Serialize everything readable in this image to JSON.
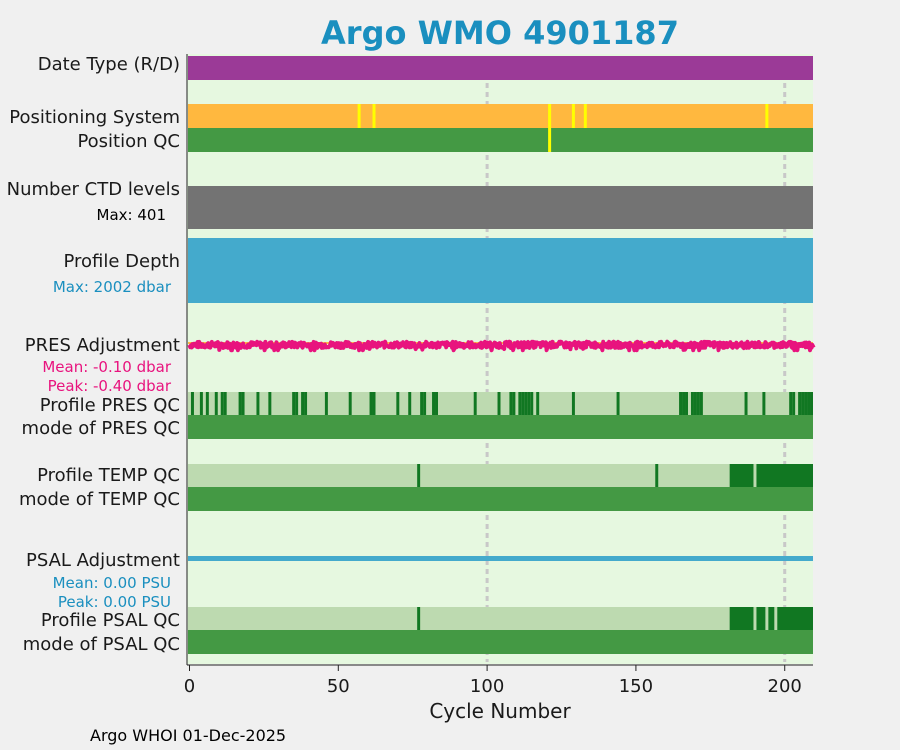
{
  "title": "Argo WMO 4901187",
  "footer": "Argo WHOI 01-Dec-2025",
  "colors": {
    "title": "#1a8fbf",
    "plot_bg": "#e6f8e0",
    "date_type": "#9b3a97",
    "positioning": "#ffb83f",
    "positioning_flag": "#ffff00",
    "position_qc": "#449944",
    "ctd_levels": "#737373",
    "profile_depth": "#44aacc",
    "pres_adj": "#e8137e",
    "pres_zero": "#ffb83f",
    "qc_light": "#bddab0",
    "qc_mid": "#449944",
    "qc_dark": "#117722",
    "psal_adj": "#44aacc",
    "grid": "#c8c8c8",
    "pink_text": "#e8137e",
    "blue_text": "#1a8fbf"
  },
  "labels": {
    "date_type": "Date Type (R/D)",
    "positioning_system": "Positioning System",
    "position_qc": "Position QC",
    "ctd_levels": "Number CTD levels",
    "ctd_max": "Max: 401",
    "profile_depth": "Profile Depth",
    "depth_max": "Max: 2002 dbar",
    "pres_adjustment": "PRES Adjustment",
    "pres_mean": "Mean: -0.10 dbar",
    "pres_peak": "Peak: -0.40 dbar",
    "profile_pres_qc": "Profile PRES QC",
    "mode_pres_qc": "mode of PRES QC",
    "profile_temp_qc": "Profile TEMP QC",
    "mode_temp_qc": "mode of TEMP QC",
    "psal_adjustment": "PSAL Adjustment",
    "psal_mean": "Mean: 0.00 PSU",
    "psal_peak": "Peak: 0.00 PSU",
    "profile_psal_qc": "Profile PSAL QC",
    "mode_psal_qc": "mode of PSAL QC"
  },
  "chart_data": {
    "type": "timeline",
    "xlabel": "Cycle Number",
    "xlim": [
      -0.5,
      209.5
    ],
    "xticks": [
      0,
      50,
      100,
      150,
      200
    ],
    "grid_x": [
      100,
      200
    ],
    "positioning_flag_cycles": [
      57,
      62,
      121,
      129,
      133,
      194
    ],
    "position_qc_flag_cycles": [
      121
    ],
    "ctd_max": 401,
    "depth_max_dbar": 2002,
    "pres_adjustment": {
      "mean": -0.1,
      "peak": -0.4,
      "unit": "dbar",
      "num_cycles": 210,
      "seed": 7
    },
    "pres_qc_dark_cycles": [
      1,
      4,
      6,
      9,
      11,
      12,
      17,
      18,
      23,
      27,
      35,
      36,
      38,
      39,
      46,
      54,
      61,
      62,
      70,
      74,
      78,
      79,
      82,
      83,
      96,
      104,
      108,
      109,
      111,
      112,
      113,
      114,
      115,
      117,
      129,
      144,
      165,
      166,
      167,
      169,
      170,
      171,
      172,
      187,
      193,
      202,
      203,
      205,
      206,
      207,
      208,
      209
    ],
    "temp_qc_dark_cycles": [
      77,
      157
    ],
    "temp_qc_dark_range": [
      182,
      209
    ],
    "temp_qc_light_gaps": [
      190
    ],
    "psal_qc_dark_cycles": [
      77
    ],
    "psal_qc_dark_range": [
      182,
      209
    ],
    "psal_qc_light_gaps": [
      190,
      194,
      197
    ]
  }
}
